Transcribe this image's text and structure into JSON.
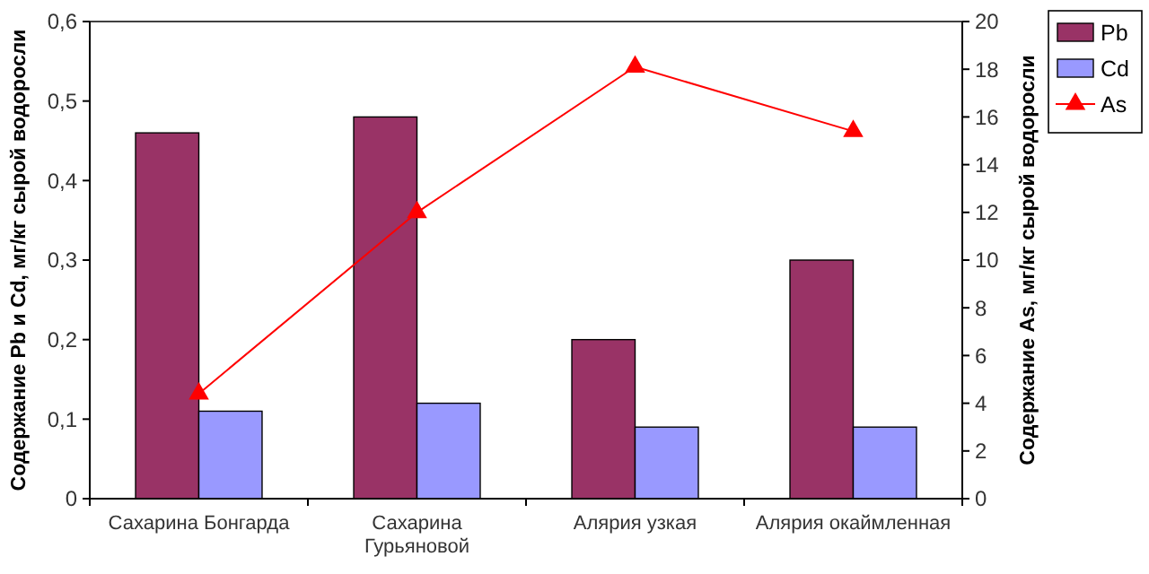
{
  "chart_data": {
    "type": "bar",
    "categories": [
      "Сахарина Бонгарда",
      "Сахарина Гурьяновой",
      "Алярия узкая",
      "Алярия окаймленная"
    ],
    "series": [
      {
        "name": "Pb",
        "color": "#993366",
        "values": [
          0.46,
          0.48,
          0.2,
          0.3
        ]
      },
      {
        "name": "Cd",
        "color": "#9999ff",
        "values": [
          0.11,
          0.12,
          0.09,
          0.09
        ]
      },
      {
        "name": "As",
        "color": "#ff0000",
        "type": "line",
        "axis": "y2",
        "marker": "triangle",
        "values": [
          4.4,
          12.0,
          18.1,
          15.4
        ]
      }
    ],
    "ylabel": "Содержание Pb и Cd, мг/кг сырой водоросли",
    "y2label": "Содержание As, мг/кг сырой водоросли",
    "ylim": [
      0,
      0.6
    ],
    "yticks": [
      {
        "value": 0,
        "label": "0"
      },
      {
        "value": 0.1,
        "label": "0,1"
      },
      {
        "value": 0.2,
        "label": "0,2"
      },
      {
        "value": 0.3,
        "label": "0,3"
      },
      {
        "value": 0.4,
        "label": "0,4"
      },
      {
        "value": 0.5,
        "label": "0,5"
      },
      {
        "value": 0.6,
        "label": "0,6"
      }
    ],
    "y2lim": [
      0,
      20
    ],
    "y2ticks": [
      0,
      2,
      4,
      6,
      8,
      10,
      12,
      14,
      16,
      18,
      20
    ],
    "grid": false,
    "legend": "top right"
  }
}
